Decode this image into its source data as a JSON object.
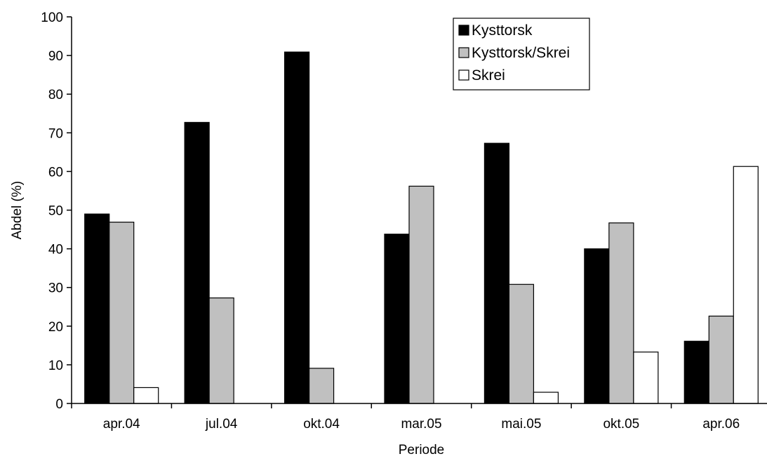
{
  "chart_data": {
    "type": "bar",
    "title": "",
    "xlabel": "Periode",
    "ylabel": "Abdel (%)",
    "ylim": [
      0,
      100
    ],
    "yticks": [
      0,
      10,
      20,
      30,
      40,
      50,
      60,
      70,
      80,
      90,
      100
    ],
    "grid": false,
    "legend_position": "top-right",
    "categories": [
      "apr.04",
      "jul.04",
      "okt.04",
      "mar.05",
      "mai.05",
      "okt.05",
      "apr.06"
    ],
    "series": [
      {
        "name": "Kysttorsk",
        "color": "#000000",
        "values": [
          49,
          72.7,
          90.9,
          43.8,
          67.3,
          40,
          16.1
        ]
      },
      {
        "name": "Kysttorsk/Skrei",
        "color": "#c0c0c0",
        "values": [
          46.9,
          27.3,
          9.1,
          56.2,
          30.8,
          46.7,
          22.6
        ]
      },
      {
        "name": "Skrei",
        "color": "#ffffff",
        "values": [
          4.1,
          0,
          0,
          0,
          2.9,
          13.3,
          61.3
        ]
      }
    ]
  }
}
